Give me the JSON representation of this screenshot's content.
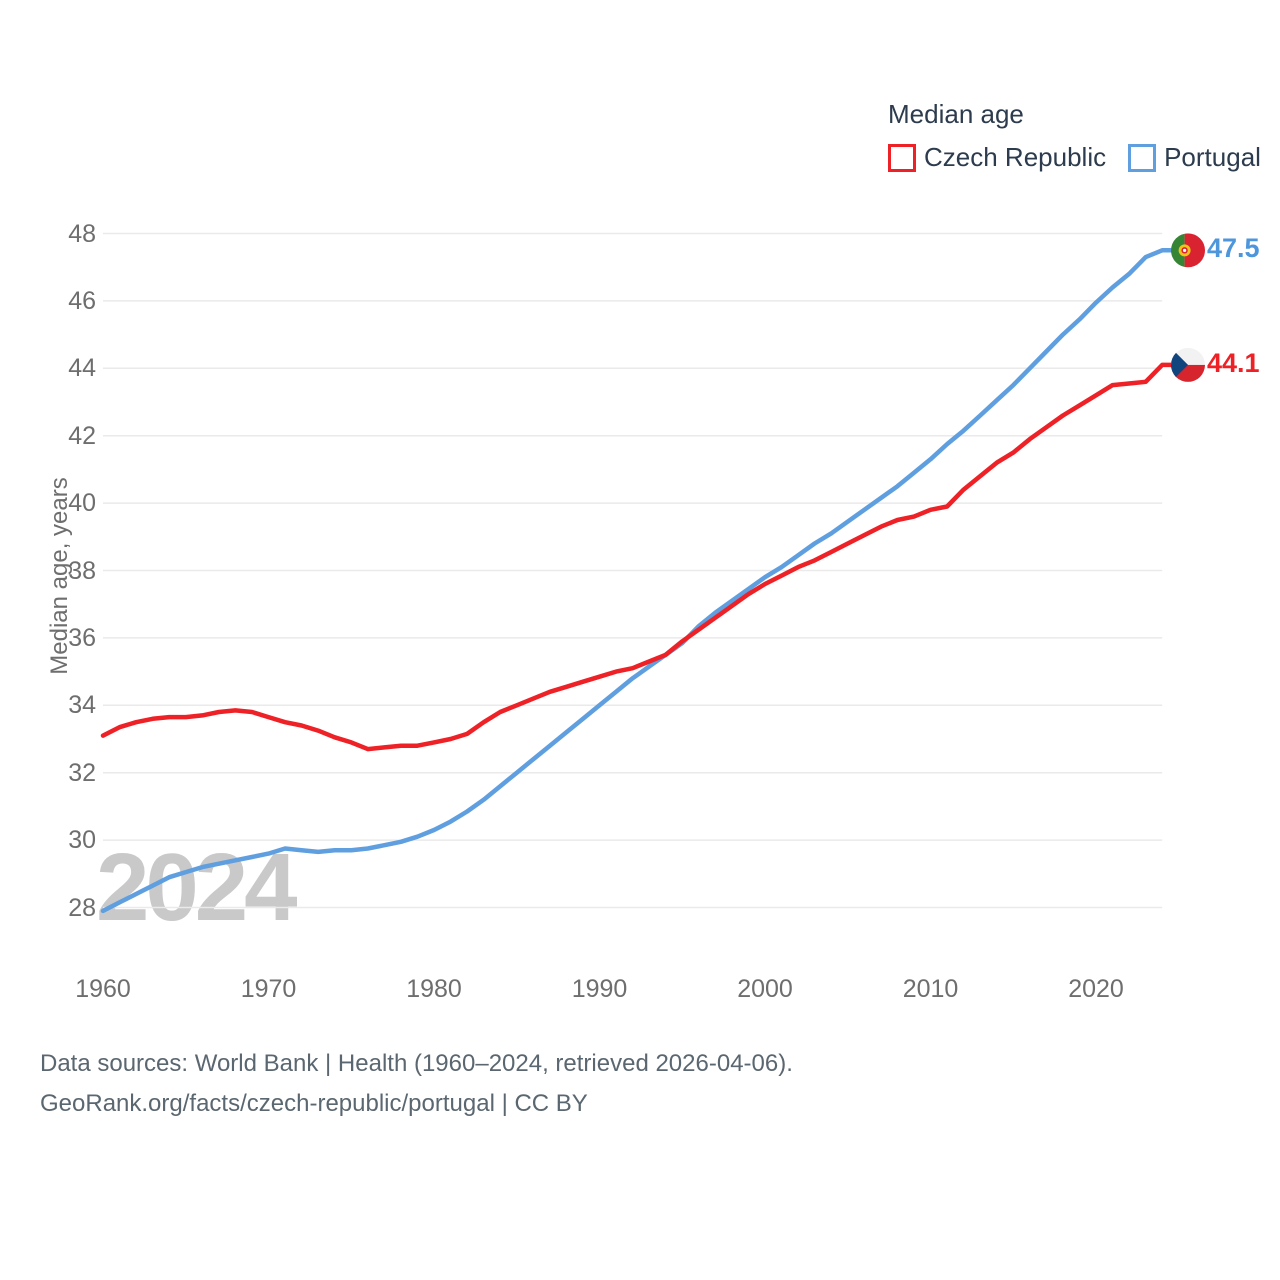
{
  "legend": {
    "title": "Median age",
    "items": [
      {
        "label": "Czech Republic",
        "color": "#ee2126"
      },
      {
        "label": "Portugal",
        "color": "#5f9fe0"
      }
    ]
  },
  "watermark": {
    "text": "2024"
  },
  "end_labels": [
    {
      "series": "Portugal",
      "value": "47.5",
      "flag": "portugal-flag-icon",
      "color": "#4d96db"
    },
    {
      "series": "Czech Republic",
      "value": "44.1",
      "flag": "czech-flag-icon",
      "color": "#ee2126"
    }
  ],
  "footer": {
    "line1": "Data sources: World Bank | Health (1960–2024, retrieved 2026-04-06).",
    "line2": "GeoRank.org/facts/czech-republic/portugal | CC BY"
  },
  "colors": {
    "grid": "#eaeaea",
    "tick_text": "#6e6e6e",
    "legend_text": "#2c3b4d",
    "watermark": "#c9c9c9",
    "footer_text": "#5b6770",
    "czech_flag_blue": "#11457e",
    "czech_flag_red": "#d7252d",
    "czech_flag_white": "#f2f2f2",
    "portugal_flag_green": "#358535",
    "portugal_flag_red": "#da2331",
    "portugal_flag_yellow": "#efc319"
  },
  "chart_data": {
    "type": "line",
    "title": "Median age",
    "ylabel": "Median age, years",
    "xlim": [
      1960,
      2024
    ],
    "ylim": [
      28,
      48
    ],
    "yticks": [
      48,
      46,
      44,
      42,
      40,
      38,
      36,
      34,
      32,
      30,
      28
    ],
    "xticks": [
      1960,
      1970,
      1980,
      1990,
      2000,
      2010,
      2020
    ],
    "grid": "horizontal-only",
    "legend_position": "top-right",
    "years": [
      1960,
      1961,
      1962,
      1963,
      1964,
      1965,
      1966,
      1967,
      1968,
      1969,
      1970,
      1971,
      1972,
      1973,
      1974,
      1975,
      1976,
      1977,
      1978,
      1979,
      1980,
      1981,
      1982,
      1983,
      1984,
      1985,
      1986,
      1987,
      1988,
      1989,
      1990,
      1991,
      1992,
      1993,
      1994,
      1995,
      1996,
      1997,
      1998,
      1999,
      2000,
      2001,
      2002,
      2003,
      2004,
      2005,
      2006,
      2007,
      2008,
      2009,
      2010,
      2011,
      2012,
      2013,
      2014,
      2015,
      2016,
      2017,
      2018,
      2019,
      2020,
      2021,
      2022,
      2023,
      2024
    ],
    "series": [
      {
        "name": "Portugal",
        "color": "#5f9fe0",
        "end_value": 47.5,
        "values": [
          27.9,
          28.15,
          28.4,
          28.65,
          28.9,
          29.05,
          29.2,
          29.3,
          29.4,
          29.5,
          29.6,
          29.75,
          29.7,
          29.65,
          29.7,
          29.7,
          29.75,
          29.85,
          29.95,
          30.1,
          30.3,
          30.55,
          30.85,
          31.2,
          31.6,
          32.0,
          32.4,
          32.8,
          33.2,
          33.6,
          34.0,
          34.4,
          34.8,
          35.15,
          35.5,
          35.85,
          36.35,
          36.75,
          37.1,
          37.45,
          37.8,
          38.1,
          38.45,
          38.8,
          39.1,
          39.45,
          39.8,
          40.15,
          40.5,
          40.9,
          41.3,
          41.75,
          42.15,
          42.6,
          43.05,
          43.5,
          44.0,
          44.5,
          45.0,
          45.45,
          45.95,
          46.4,
          46.8,
          47.3,
          47.5
        ]
      },
      {
        "name": "Czech Republic",
        "color": "#ee2126",
        "end_value": 44.1,
        "values": [
          33.1,
          33.35,
          33.5,
          33.6,
          33.65,
          33.65,
          33.7,
          33.8,
          33.85,
          33.8,
          33.65,
          33.5,
          33.4,
          33.25,
          33.05,
          32.9,
          32.7,
          32.75,
          32.8,
          32.8,
          32.9,
          33.0,
          33.15,
          33.5,
          33.8,
          34.0,
          34.2,
          34.4,
          34.55,
          34.7,
          34.85,
          35.0,
          35.1,
          35.3,
          35.5,
          35.9,
          36.25,
          36.6,
          36.95,
          37.3,
          37.6,
          37.85,
          38.1,
          38.3,
          38.55,
          38.8,
          39.05,
          39.3,
          39.5,
          39.6,
          39.8,
          39.9,
          40.4,
          40.8,
          41.2,
          41.5,
          41.9,
          42.25,
          42.6,
          42.9,
          43.2,
          43.5,
          43.55,
          43.6,
          44.1
        ]
      }
    ]
  }
}
